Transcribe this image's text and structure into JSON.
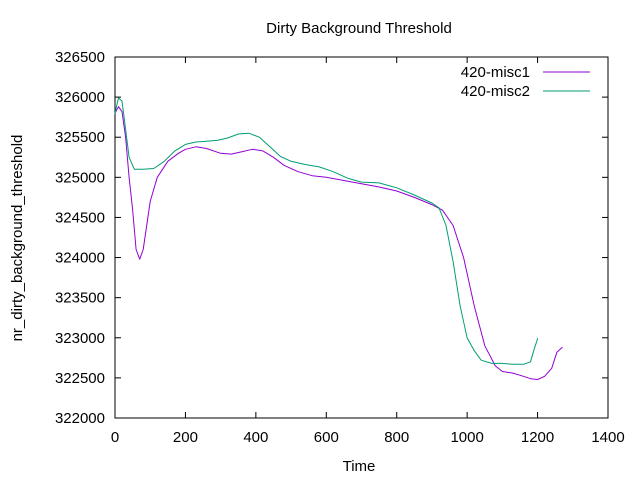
{
  "chart_data": {
    "type": "line",
    "title": "Dirty Background Threshold",
    "xlabel": "Time",
    "ylabel": "nr_dirty_background_threshold",
    "xlim": [
      0,
      1400
    ],
    "ylim": [
      322000,
      326500
    ],
    "xticks": [
      0,
      200,
      400,
      600,
      800,
      1000,
      1200,
      1400
    ],
    "yticks": [
      322000,
      322500,
      323000,
      323500,
      324000,
      324500,
      325000,
      325500,
      326000,
      326500
    ],
    "grid": false,
    "legend_position": "top-right",
    "series": [
      {
        "name": "420-misc1",
        "color": "#9400d3",
        "points": [
          [
            0,
            325800
          ],
          [
            10,
            325880
          ],
          [
            20,
            325820
          ],
          [
            30,
            325500
          ],
          [
            40,
            325000
          ],
          [
            50,
            324600
          ],
          [
            60,
            324100
          ],
          [
            70,
            323980
          ],
          [
            80,
            324100
          ],
          [
            90,
            324400
          ],
          [
            100,
            324700
          ],
          [
            120,
            325000
          ],
          [
            150,
            325200
          ],
          [
            180,
            325300
          ],
          [
            200,
            325350
          ],
          [
            230,
            325380
          ],
          [
            260,
            325360
          ],
          [
            300,
            325300
          ],
          [
            330,
            325290
          ],
          [
            360,
            325320
          ],
          [
            390,
            325350
          ],
          [
            420,
            325330
          ],
          [
            450,
            325250
          ],
          [
            480,
            325150
          ],
          [
            520,
            325070
          ],
          [
            560,
            325020
          ],
          [
            600,
            325000
          ],
          [
            650,
            324960
          ],
          [
            700,
            324920
          ],
          [
            750,
            324880
          ],
          [
            800,
            324830
          ],
          [
            850,
            324750
          ],
          [
            900,
            324660
          ],
          [
            930,
            324590
          ],
          [
            960,
            324400
          ],
          [
            990,
            324000
          ],
          [
            1020,
            323400
          ],
          [
            1050,
            322900
          ],
          [
            1080,
            322650
          ],
          [
            1100,
            322580
          ],
          [
            1130,
            322560
          ],
          [
            1160,
            322520
          ],
          [
            1180,
            322490
          ],
          [
            1200,
            322480
          ],
          [
            1220,
            322520
          ],
          [
            1240,
            322620
          ],
          [
            1255,
            322820
          ],
          [
            1270,
            322880
          ]
        ]
      },
      {
        "name": "420-misc2",
        "color": "#009e73",
        "points": [
          [
            0,
            325800
          ],
          [
            10,
            325990
          ],
          [
            20,
            325950
          ],
          [
            30,
            325600
          ],
          [
            40,
            325250
          ],
          [
            55,
            325100
          ],
          [
            80,
            325100
          ],
          [
            110,
            325110
          ],
          [
            140,
            325200
          ],
          [
            170,
            325330
          ],
          [
            200,
            325410
          ],
          [
            230,
            325440
          ],
          [
            260,
            325450
          ],
          [
            290,
            325460
          ],
          [
            320,
            325490
          ],
          [
            350,
            325540
          ],
          [
            380,
            325550
          ],
          [
            410,
            325500
          ],
          [
            440,
            325380
          ],
          [
            470,
            325260
          ],
          [
            500,
            325200
          ],
          [
            540,
            325160
          ],
          [
            580,
            325130
          ],
          [
            620,
            325070
          ],
          [
            660,
            324990
          ],
          [
            700,
            324940
          ],
          [
            750,
            324930
          ],
          [
            800,
            324870
          ],
          [
            850,
            324780
          ],
          [
            900,
            324680
          ],
          [
            920,
            324620
          ],
          [
            940,
            324400
          ],
          [
            960,
            323950
          ],
          [
            980,
            323400
          ],
          [
            1000,
            323000
          ],
          [
            1020,
            322840
          ],
          [
            1040,
            322720
          ],
          [
            1070,
            322680
          ],
          [
            1100,
            322680
          ],
          [
            1130,
            322670
          ],
          [
            1160,
            322670
          ],
          [
            1180,
            322700
          ],
          [
            1190,
            322850
          ],
          [
            1200,
            322990
          ]
        ]
      }
    ]
  }
}
